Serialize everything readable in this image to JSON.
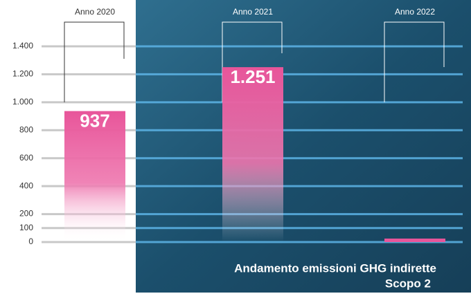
{
  "chart_data": {
    "type": "bar",
    "title": [
      "Andamento emissioni GHG indirette",
      "Scopo 2"
    ],
    "categories": [
      "Anno 2020",
      "Anno 2021",
      "Anno 2022"
    ],
    "values": [
      937,
      1251,
      25
    ],
    "value_labels": [
      "937",
      "1.251",
      null
    ],
    "color": "#e8559a",
    "ylim": [
      0,
      1400
    ],
    "yticks": [
      0,
      100,
      200,
      400,
      600,
      800,
      {
        "value": 1000,
        "label": "1.000"
      },
      {
        "value": 1200,
        "label": "1.200"
      },
      {
        "value": 1400,
        "label": "1.400"
      }
    ],
    "grid": true
  }
}
